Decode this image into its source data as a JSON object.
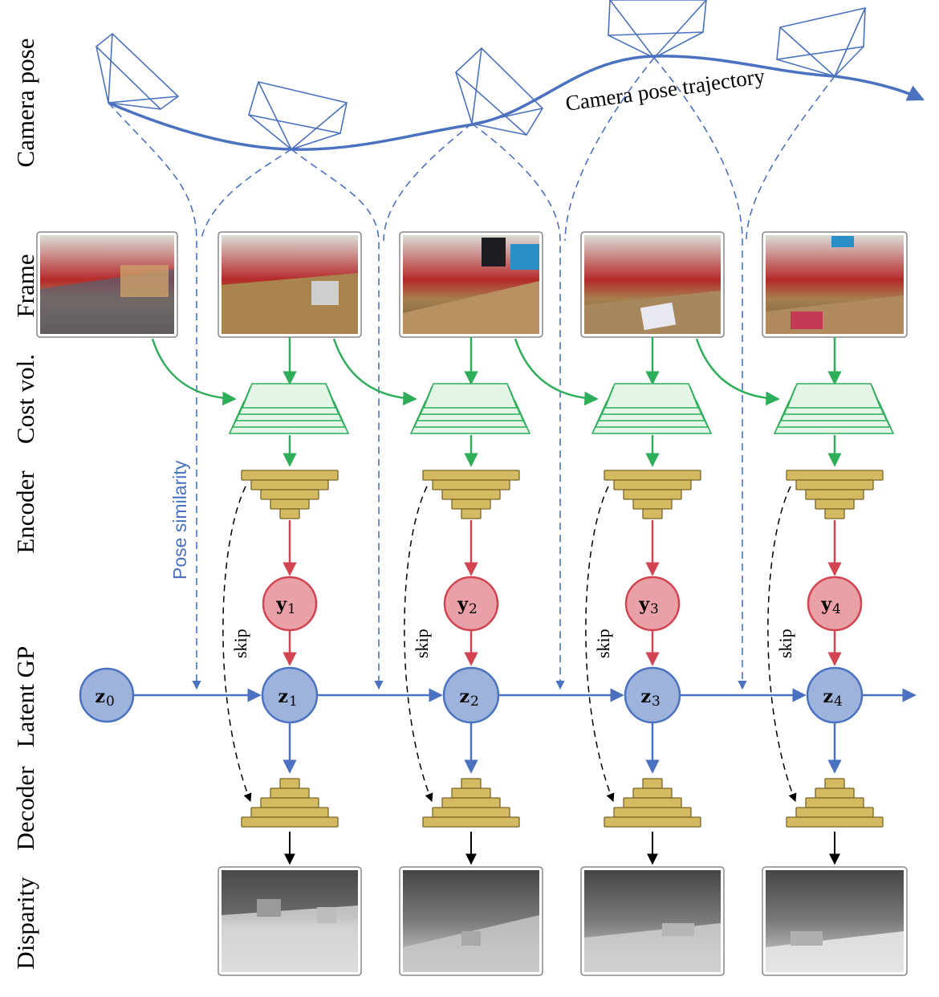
{
  "row_labels": {
    "camera_pose": "Camera pose",
    "frame": "Frame",
    "cost_vol": "Cost vol.",
    "encoder": "Encoder",
    "latent_gp": "Latent GP",
    "decoder": "Decoder",
    "disparity": "Disparity"
  },
  "trajectory_label": "Camera pose trajectory",
  "pose_similarity_label": "Pose similarity",
  "skip_label": "skip",
  "initial_latent": {
    "symbol": "z",
    "subscript": "0"
  },
  "latent_nodes": [
    {
      "symbol": "z",
      "subscript": "1"
    },
    {
      "symbol": "z",
      "subscript": "2"
    },
    {
      "symbol": "z",
      "subscript": "3"
    },
    {
      "symbol": "z",
      "subscript": "4"
    }
  ],
  "observation_nodes": [
    {
      "symbol": "y",
      "subscript": "1"
    },
    {
      "symbol": "y",
      "subscript": "2"
    },
    {
      "symbol": "y",
      "subscript": "3"
    },
    {
      "symbol": "y",
      "subscript": "4"
    }
  ],
  "colors": {
    "latent_fill": "#9db3dc",
    "latent_stroke": "#4a72c0",
    "obs_fill": "#e9a0a6",
    "obs_stroke": "#d2444f",
    "green": "#2fae5a",
    "green_fill": "#e2f5e6",
    "tan_fill": "#d4bb62",
    "tan_stroke": "#7a6428",
    "blue": "#4a72c0"
  }
}
